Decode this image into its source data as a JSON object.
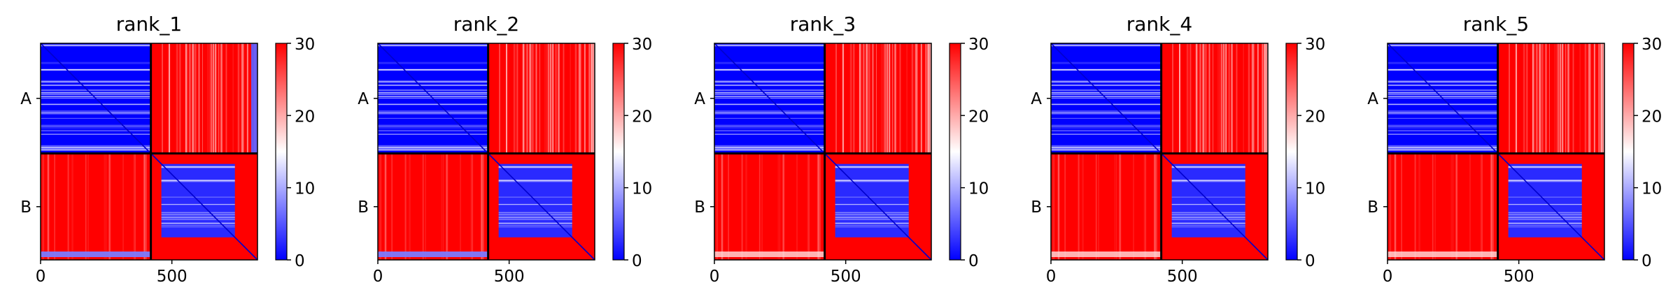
{
  "figure": {
    "panels": [
      {
        "title": "rank_1"
      },
      {
        "title": "rank_2"
      },
      {
        "title": "rank_3"
      },
      {
        "title": "rank_4"
      },
      {
        "title": "rank_5"
      }
    ]
  },
  "colors": {
    "low": "#0000ff",
    "mid": "#ffffff",
    "high": "#ff0000"
  },
  "chart_data": {
    "type": "heatmap",
    "description_of_values": "predicted aligned error matrices (5 models), residue index vs residue index",
    "colormap": "bwr",
    "vmin": 0,
    "vmax": 30,
    "colorbar_ticks": [
      0,
      10,
      20,
      30
    ],
    "colorbar_tick_labels": [
      "0",
      "10",
      "20",
      "30"
    ],
    "x_ticks": [
      0,
      500
    ],
    "x_tick_labels": [
      "0",
      "500"
    ],
    "xlim": [
      0,
      826
    ],
    "ylim": [
      826,
      0
    ],
    "chains": [
      {
        "label": "A",
        "start": 0,
        "end": 420
      },
      {
        "label": "B",
        "start": 420,
        "end": 826
      }
    ],
    "chain_boundary": 420,
    "blocks": {
      "A_A": {
        "value_approx": 3,
        "note": "low error (blue) with lighter horizontal bands"
      },
      "A_B": {
        "value_approx": 28,
        "note": "high error (red) with faint vertical streaks"
      },
      "B_A": {
        "value_approx": 29,
        "note": "high error (red)"
      },
      "B_B_core": {
        "range": [
          460,
          740
        ],
        "value_approx": 5,
        "note": "low error (blue) square domain"
      },
      "B_B_margin": {
        "value_approx": 29,
        "note": "high error (red) outside core domain"
      }
    },
    "panels": [
      {
        "title": "rank_1",
        "right_edge_blue_A_A": true,
        "bottom_strip_blue": true
      },
      {
        "title": "rank_2",
        "right_edge_blue_A_A": false,
        "bottom_strip_blue": true
      },
      {
        "title": "rank_3",
        "right_edge_blue_A_A": false,
        "bottom_strip_blue": false
      },
      {
        "title": "rank_4",
        "right_edge_blue_A_A": false,
        "bottom_strip_blue": false
      },
      {
        "title": "rank_5",
        "right_edge_blue_A_A": false,
        "bottom_strip_blue": false
      }
    ]
  }
}
